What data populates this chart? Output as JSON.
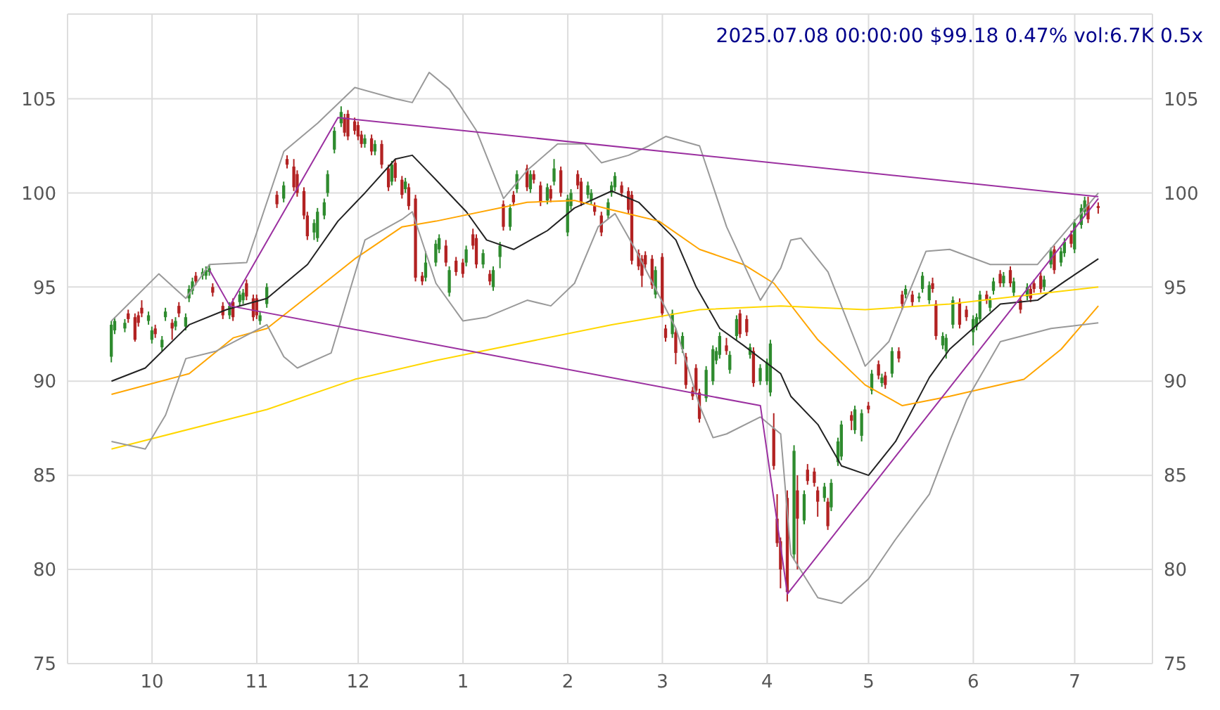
{
  "chart_data": {
    "type": "candlestick",
    "title": "2025.07.08 00:00:00 $99.18 0.47% vol:6.7K 0.5x",
    "x": [
      "2024-09-19",
      "2024-09-20",
      "2024-09-23",
      "2024-09-24",
      "2024-09-26",
      "2024-09-27",
      "2024-09-28",
      "2024-09-30",
      "2024-10-01",
      "2024-10-02",
      "2024-10-04",
      "2024-10-05",
      "2024-10-07",
      "2024-10-08",
      "2024-10-09",
      "2024-10-11",
      "2024-10-12",
      "2024-10-13",
      "2024-10-14",
      "2024-10-16",
      "2024-10-17",
      "2024-10-18",
      "2024-10-19",
      "2024-10-22",
      "2024-10-24",
      "2024-10-25",
      "2024-10-27",
      "2024-10-28",
      "2024-10-29",
      "2024-10-31",
      "2024-11-01",
      "2024-11-02",
      "2024-11-04",
      "2024-11-07",
      "2024-11-09",
      "2024-11-10",
      "2024-11-12",
      "2024-11-13",
      "2024-11-15",
      "2024-11-16",
      "2024-11-18",
      "2024-11-19",
      "2024-11-21",
      "2024-11-22",
      "2024-11-24",
      "2024-11-26",
      "2024-11-27",
      "2024-11-28",
      "2024-11-30",
      "2024-12-01",
      "2024-12-02",
      "2024-12-03",
      "2024-12-05",
      "2024-12-06",
      "2024-12-08",
      "2024-12-10",
      "2024-12-11",
      "2024-12-12",
      "2024-12-14",
      "2024-12-15",
      "2024-12-16",
      "2024-12-18",
      "2024-12-20",
      "2024-12-21",
      "2024-12-24",
      "2024-12-25",
      "2024-12-27",
      "2024-12-28",
      "2024-12-30",
      "2025-01-01",
      "2025-01-02",
      "2025-01-04",
      "2025-01-05",
      "2025-01-07",
      "2025-01-09",
      "2025-01-10",
      "2025-01-12",
      "2025-01-13",
      "2025-01-15",
      "2025-01-16",
      "2025-01-17",
      "2025-01-20",
      "2025-01-21",
      "2025-01-22",
      "2025-01-24",
      "2025-01-26",
      "2025-01-27",
      "2025-01-28",
      "2025-01-30",
      "2025-02-01",
      "2025-02-02",
      "2025-02-04",
      "2025-02-05",
      "2025-02-07",
      "2025-02-08",
      "2025-02-09",
      "2025-02-11",
      "2025-02-13",
      "2025-02-14",
      "2025-02-15",
      "2025-02-17",
      "2025-02-19",
      "2025-02-20",
      "2025-02-22",
      "2025-02-23",
      "2025-02-24",
      "2025-02-26",
      "2025-02-27",
      "2025-03-01",
      "2025-03-02",
      "2025-03-04",
      "2025-03-05",
      "2025-03-07",
      "2025-03-08",
      "2025-03-10",
      "2025-03-11",
      "2025-03-12",
      "2025-03-14",
      "2025-03-16",
      "2025-03-17",
      "2025-03-18",
      "2025-03-20",
      "2025-03-21",
      "2025-03-23",
      "2025-03-24",
      "2025-03-26",
      "2025-03-27",
      "2025-03-28",
      "2025-03-30",
      "2025-04-01",
      "2025-04-02",
      "2025-04-03",
      "2025-04-04",
      "2025-04-05",
      "2025-04-07",
      "2025-04-09",
      "2025-04-10",
      "2025-04-12",
      "2025-04-13",
      "2025-04-15",
      "2025-04-16",
      "2025-04-18",
      "2025-04-19",
      "2025-04-20",
      "2025-04-22",
      "2025-04-23",
      "2025-04-26",
      "2025-04-27",
      "2025-04-29",
      "2025-05-01",
      "2025-05-02",
      "2025-05-04",
      "2025-05-05",
      "2025-05-06",
      "2025-05-08",
      "2025-05-10",
      "2025-05-11",
      "2025-05-12",
      "2025-05-14",
      "2025-05-16",
      "2025-05-17",
      "2025-05-19",
      "2025-05-20",
      "2025-05-21",
      "2025-05-23",
      "2025-05-24",
      "2025-05-26",
      "2025-05-28",
      "2025-05-30",
      "2025-06-01",
      "2025-06-02",
      "2025-06-03",
      "2025-06-05",
      "2025-06-06",
      "2025-06-07",
      "2025-06-09",
      "2025-06-10",
      "2025-06-12",
      "2025-06-13",
      "2025-06-15",
      "2025-06-17",
      "2025-06-18",
      "2025-06-19",
      "2025-06-21",
      "2025-06-22",
      "2025-06-24",
      "2025-06-25",
      "2025-06-27",
      "2025-06-28",
      "2025-06-30",
      "2025-07-01",
      "2025-07-03",
      "2025-07-04",
      "2025-07-05",
      "2025-07-08"
    ],
    "ohlc": [
      [
        91.3,
        93.2,
        91.0,
        93.0
      ],
      [
        92.7,
        93.4,
        92.5,
        93.2
      ],
      [
        92.8,
        93.3,
        92.6,
        93.1
      ],
      [
        93.6,
        93.8,
        93.1,
        93.3
      ],
      [
        93.4,
        93.6,
        92.1,
        92.2
      ],
      [
        93.5,
        93.7,
        92.9,
        93.1
      ],
      [
        93.9,
        94.3,
        93.4,
        93.6
      ],
      [
        93.2,
        93.7,
        93.0,
        93.5
      ],
      [
        92.2,
        92.9,
        92.0,
        92.7
      ],
      [
        92.8,
        93.0,
        92.3,
        92.5
      ],
      [
        91.8,
        92.4,
        91.6,
        92.2
      ],
      [
        93.4,
        93.9,
        93.2,
        93.7
      ],
      [
        93.1,
        93.3,
        92.2,
        92.8
      ],
      [
        92.9,
        93.4,
        92.7,
        93.2
      ],
      [
        94.0,
        94.2,
        93.4,
        93.6
      ],
      [
        92.9,
        93.6,
        92.7,
        93.4
      ],
      [
        94.4,
        95.1,
        94.2,
        94.9
      ],
      [
        94.8,
        95.5,
        94.6,
        95.3
      ],
      [
        95.6,
        95.8,
        95.1,
        95.3
      ],
      [
        95.6,
        96.0,
        95.4,
        95.8
      ],
      [
        95.6,
        96.1,
        95.4,
        95.9
      ],
      [
        95.8,
        96.2,
        95.6,
        96.0
      ],
      [
        95.0,
        95.2,
        94.5,
        94.7
      ],
      [
        94.0,
        94.2,
        93.3,
        93.5
      ],
      [
        93.5,
        94.2,
        93.3,
        94.0
      ],
      [
        94.2,
        94.4,
        93.2,
        93.4
      ],
      [
        94.2,
        94.8,
        94.0,
        94.6
      ],
      [
        94.3,
        94.9,
        94.1,
        94.7
      ],
      [
        95.2,
        95.4,
        94.3,
        94.5
      ],
      [
        94.4,
        94.6,
        93.2,
        93.4
      ],
      [
        94.4,
        94.6,
        93.3,
        93.5
      ],
      [
        93.2,
        93.7,
        93.0,
        93.5
      ],
      [
        94.1,
        95.2,
        93.9,
        95.0
      ],
      [
        99.9,
        100.1,
        99.2,
        99.4
      ],
      [
        99.7,
        100.6,
        99.5,
        100.4
      ],
      [
        101.8,
        102.0,
        101.3,
        101.5
      ],
      [
        101.4,
        101.8,
        100.1,
        100.3
      ],
      [
        101.0,
        101.2,
        99.8,
        100.0
      ],
      [
        100.1,
        100.3,
        98.6,
        98.8
      ],
      [
        98.8,
        99.0,
        97.5,
        97.7
      ],
      [
        97.9,
        98.6,
        97.5,
        98.4
      ],
      [
        97.6,
        99.2,
        97.4,
        99.0
      ],
      [
        98.8,
        99.7,
        98.6,
        99.5
      ],
      [
        100.0,
        101.2,
        99.8,
        101.0
      ],
      [
        102.3,
        103.5,
        102.1,
        103.3
      ],
      [
        103.7,
        104.6,
        103.5,
        104.3
      ],
      [
        104.0,
        104.2,
        103.0,
        103.2
      ],
      [
        104.2,
        104.4,
        102.8,
        103.0
      ],
      [
        103.8,
        104.0,
        103.1,
        103.3
      ],
      [
        103.6,
        103.8,
        102.8,
        103.0
      ],
      [
        103.1,
        103.3,
        102.4,
        102.6
      ],
      [
        102.6,
        103.1,
        102.4,
        102.9
      ],
      [
        102.9,
        103.1,
        102.0,
        102.2
      ],
      [
        102.2,
        102.8,
        102.0,
        102.6
      ],
      [
        102.6,
        102.8,
        101.3,
        101.5
      ],
      [
        101.3,
        101.5,
        100.1,
        100.3
      ],
      [
        100.6,
        101.7,
        100.4,
        101.5
      ],
      [
        101.6,
        101.8,
        100.6,
        100.8
      ],
      [
        100.7,
        100.9,
        99.7,
        99.9
      ],
      [
        100.2,
        100.8,
        100.0,
        100.6
      ],
      [
        100.3,
        100.5,
        99.1,
        99.3
      ],
      [
        99.7,
        99.9,
        95.3,
        95.5
      ],
      [
        95.6,
        95.8,
        95.1,
        95.3
      ],
      [
        95.5,
        96.9,
        95.3,
        96.3
      ],
      [
        96.3,
        97.5,
        96.1,
        97.3
      ],
      [
        97.0,
        97.8,
        96.8,
        97.6
      ],
      [
        97.2,
        97.5,
        96.1,
        96.3
      ],
      [
        94.7,
        96.1,
        94.5,
        95.9
      ],
      [
        96.4,
        96.6,
        95.6,
        95.8
      ],
      [
        96.3,
        96.5,
        95.5,
        95.7
      ],
      [
        96.3,
        97.2,
        96.1,
        97.0
      ],
      [
        97.8,
        98.1,
        97.0,
        97.2
      ],
      [
        97.6,
        97.8,
        96.0,
        96.2
      ],
      [
        96.2,
        97.0,
        96.0,
        96.8
      ],
      [
        95.7,
        95.9,
        95.1,
        95.3
      ],
      [
        95.0,
        96.1,
        94.8,
        95.9
      ],
      [
        96.6,
        97.4,
        96.0,
        97.2
      ],
      [
        99.4,
        99.6,
        98.0,
        98.2
      ],
      [
        98.2,
        99.4,
        98.0,
        99.2
      ],
      [
        99.9,
        100.1,
        99.3,
        99.5
      ],
      [
        100.2,
        101.2,
        100.0,
        101.0
      ],
      [
        101.3,
        101.5,
        100.1,
        100.3
      ],
      [
        100.2,
        101.2,
        100.0,
        101.0
      ],
      [
        101.0,
        101.2,
        100.5,
        100.7
      ],
      [
        100.4,
        100.6,
        99.3,
        99.5
      ],
      [
        99.6,
        100.5,
        99.4,
        100.3
      ],
      [
        100.2,
        100.4,
        99.5,
        99.7
      ],
      [
        100.6,
        101.8,
        100.4,
        101.3
      ],
      [
        101.2,
        101.4,
        99.8,
        100.0
      ],
      [
        97.9,
        99.9,
        97.7,
        99.7
      ],
      [
        99.3,
        100.2,
        99.1,
        100.0
      ],
      [
        101.0,
        101.2,
        100.2,
        100.4
      ],
      [
        100.6,
        100.8,
        99.3,
        99.5
      ],
      [
        99.9,
        100.6,
        99.7,
        100.4
      ],
      [
        99.6,
        100.2,
        99.4,
        100.0
      ],
      [
        99.3,
        99.5,
        98.8,
        99.0
      ],
      [
        98.8,
        99.0,
        97.7,
        97.9
      ],
      [
        98.8,
        99.7,
        98.6,
        99.5
      ],
      [
        100.0,
        100.6,
        99.8,
        100.4
      ],
      [
        100.3,
        101.1,
        100.1,
        100.9
      ],
      [
        100.4,
        100.6,
        99.8,
        100.0
      ],
      [
        100.1,
        100.3,
        98.9,
        99.1
      ],
      [
        99.9,
        100.1,
        96.2,
        96.4
      ],
      [
        96.8,
        97.0,
        95.9,
        96.1
      ],
      [
        96.5,
        96.7,
        95.0,
        95.6
      ],
      [
        96.7,
        96.9,
        96.0,
        96.2
      ],
      [
        96.5,
        96.7,
        94.9,
        95.1
      ],
      [
        94.6,
        96.1,
        94.4,
        95.9
      ],
      [
        96.6,
        96.8,
        93.4,
        93.6
      ],
      [
        92.8,
        93.0,
        92.1,
        92.3
      ],
      [
        92.5,
        93.8,
        92.3,
        93.6
      ],
      [
        92.6,
        92.8,
        90.9,
        91.5
      ],
      [
        91.7,
        92.6,
        91.5,
        92.4
      ],
      [
        91.3,
        91.5,
        89.6,
        89.8
      ],
      [
        89.5,
        89.7,
        89.0,
        89.2
      ],
      [
        90.7,
        90.9,
        89.3,
        89.5
      ],
      [
        89.4,
        89.6,
        87.8,
        88.0
      ],
      [
        89.1,
        90.8,
        88.9,
        90.6
      ],
      [
        90.0,
        91.9,
        89.8,
        91.7
      ],
      [
        91.1,
        91.8,
        90.9,
        91.6
      ],
      [
        91.4,
        92.6,
        91.2,
        92.4
      ],
      [
        91.9,
        92.3,
        91.4,
        91.6
      ],
      [
        90.6,
        91.6,
        90.4,
        91.4
      ],
      [
        92.4,
        93.5,
        92.2,
        93.3
      ],
      [
        93.6,
        93.8,
        92.3,
        92.5
      ],
      [
        93.3,
        93.5,
        92.4,
        92.6
      ],
      [
        91.4,
        92.0,
        91.2,
        91.8
      ],
      [
        91.6,
        91.8,
        89.7,
        89.9
      ],
      [
        90.0,
        90.9,
        89.8,
        90.7
      ],
      [
        90.0,
        91.2,
        89.8,
        91.0
      ],
      [
        89.4,
        92.2,
        89.2,
        92.0
      ],
      [
        87.5,
        88.3,
        85.3,
        85.5
      ],
      [
        82.7,
        84.0,
        81.2,
        81.4
      ],
      [
        81.5,
        81.7,
        79.0,
        80.0
      ],
      [
        83.8,
        84.2,
        78.3,
        78.8
      ],
      [
        80.8,
        86.6,
        80.5,
        86.3
      ],
      [
        84.2,
        85.0,
        80.0,
        82.7
      ],
      [
        82.6,
        84.2,
        82.4,
        84.0
      ],
      [
        85.3,
        85.6,
        84.5,
        84.7
      ],
      [
        85.2,
        85.4,
        84.4,
        84.6
      ],
      [
        84.2,
        84.4,
        82.8,
        83.6
      ],
      [
        83.8,
        84.6,
        83.6,
        84.4
      ],
      [
        83.6,
        83.8,
        82.1,
        82.3
      ],
      [
        83.3,
        84.8,
        83.1,
        84.6
      ],
      [
        85.7,
        87.0,
        85.5,
        86.8
      ],
      [
        86.0,
        87.9,
        85.8,
        87.7
      ],
      [
        88.2,
        88.4,
        87.4,
        87.9
      ],
      [
        87.4,
        88.7,
        87.2,
        88.5
      ],
      [
        87.1,
        88.5,
        86.8,
        88.3
      ],
      [
        88.7,
        88.9,
        88.3,
        88.5
      ],
      [
        89.5,
        90.6,
        89.3,
        90.4
      ],
      [
        90.9,
        91.1,
        90.1,
        90.3
      ],
      [
        89.9,
        90.4,
        89.7,
        90.2
      ],
      [
        90.3,
        90.5,
        89.6,
        89.8
      ],
      [
        90.4,
        91.8,
        90.2,
        91.6
      ],
      [
        91.6,
        91.8,
        91.0,
        91.2
      ],
      [
        94.6,
        94.8,
        93.8,
        94.1
      ],
      [
        94.6,
        95.1,
        94.4,
        94.9
      ],
      [
        94.6,
        94.8,
        94.0,
        94.2
      ],
      [
        94.4,
        94.7,
        94.2,
        94.5
      ],
      [
        94.9,
        95.8,
        94.7,
        95.6
      ],
      [
        94.3,
        95.3,
        94.1,
        95.1
      ],
      [
        95.2,
        95.5,
        94.7,
        94.9
      ],
      [
        94.1,
        94.3,
        92.2,
        92.4
      ],
      [
        91.9,
        92.6,
        91.7,
        92.4
      ],
      [
        91.6,
        92.5,
        91.2,
        92.3
      ],
      [
        93.0,
        94.5,
        92.8,
        94.3
      ],
      [
        94.2,
        94.4,
        92.8,
        93.0
      ],
      [
        93.8,
        94.0,
        93.2,
        93.4
      ],
      [
        92.6,
        93.5,
        91.9,
        93.3
      ],
      [
        92.9,
        93.6,
        92.7,
        93.4
      ],
      [
        93.3,
        94.8,
        93.1,
        94.6
      ],
      [
        94.6,
        94.8,
        94.1,
        94.3
      ],
      [
        93.9,
        94.5,
        93.7,
        94.3
      ],
      [
        94.8,
        95.5,
        94.6,
        95.3
      ],
      [
        95.7,
        95.9,
        95.0,
        95.2
      ],
      [
        95.2,
        95.8,
        95.0,
        95.6
      ],
      [
        95.9,
        96.1,
        95.0,
        95.2
      ],
      [
        94.7,
        95.5,
        94.5,
        95.3
      ],
      [
        94.3,
        94.5,
        93.6,
        93.8
      ],
      [
        94.5,
        95.2,
        94.3,
        95.0
      ],
      [
        94.9,
        95.1,
        94.2,
        94.4
      ],
      [
        95.2,
        95.4,
        94.7,
        94.9
      ],
      [
        95.6,
        95.8,
        94.7,
        94.9
      ],
      [
        95.0,
        95.6,
        94.8,
        95.4
      ],
      [
        96.2,
        97.1,
        96.0,
        96.9
      ],
      [
        97.0,
        97.2,
        95.7,
        95.9
      ],
      [
        96.3,
        97.1,
        96.1,
        96.9
      ],
      [
        96.8,
        97.6,
        96.6,
        97.4
      ],
      [
        97.8,
        98.0,
        97.1,
        97.3
      ],
      [
        97.0,
        98.6,
        96.8,
        98.4
      ],
      [
        98.3,
        99.4,
        98.1,
        99.2
      ],
      [
        99.0,
        99.8,
        98.8,
        99.6
      ],
      [
        99.4,
        99.8,
        98.4,
        98.6
      ],
      [
        99.3,
        99.5,
        98.9,
        99.2
      ]
    ],
    "colors": [
      "#2e8b2e",
      "#2e8b2e",
      "#2e8b2e",
      "#b22222",
      "#b22222",
      "#b22222",
      "#b22222",
      "#2e8b2e",
      "#2e8b2e",
      "#b22222",
      "#2e8b2e",
      "#2e8b2e",
      "#b22222",
      "#2e8b2e",
      "#b22222",
      "#2e8b2e",
      "#2e8b2e",
      "#2e8b2e",
      "#b22222",
      "#2e8b2e",
      "#2e8b2e",
      "#2e8b2e",
      "#b22222",
      "#b22222",
      "#2e8b2e",
      "#b22222",
      "#2e8b2e",
      "#2e8b2e",
      "#b22222",
      "#b22222",
      "#b22222",
      "#2e8b2e",
      "#2e8b2e",
      "#b22222",
      "#2e8b2e",
      "#b22222",
      "#b22222",
      "#b22222",
      "#b22222",
      "#b22222",
      "#2e8b2e",
      "#2e8b2e",
      "#2e8b2e",
      "#2e8b2e",
      "#2e8b2e",
      "#2e8b2e",
      "#b22222",
      "#b22222",
      "#b22222",
      "#b22222",
      "#b22222",
      "#2e8b2e",
      "#b22222",
      "#2e8b2e",
      "#b22222",
      "#b22222",
      "#2e8b2e",
      "#b22222",
      "#b22222",
      "#2e8b2e",
      "#b22222",
      "#b22222",
      "#b22222",
      "#2e8b2e",
      "#2e8b2e",
      "#2e8b2e",
      "#b22222",
      "#2e8b2e",
      "#b22222",
      "#b22222",
      "#2e8b2e",
      "#b22222",
      "#b22222",
      "#2e8b2e",
      "#b22222",
      "#2e8b2e",
      "#2e8b2e",
      "#b22222",
      "#2e8b2e",
      "#b22222",
      "#2e8b2e",
      "#b22222",
      "#2e8b2e",
      "#b22222",
      "#b22222",
      "#2e8b2e",
      "#b22222",
      "#2e8b2e",
      "#b22222",
      "#2e8b2e",
      "#2e8b2e",
      "#b22222",
      "#b22222",
      "#2e8b2e",
      "#2e8b2e",
      "#b22222",
      "#b22222",
      "#2e8b2e",
      "#2e8b2e",
      "#2e8b2e",
      "#b22222",
      "#b22222",
      "#b22222",
      "#b22222",
      "#b22222",
      "#b22222",
      "#b22222",
      "#2e8b2e",
      "#b22222",
      "#b22222",
      "#2e8b2e",
      "#b22222",
      "#2e8b2e",
      "#b22222",
      "#b22222",
      "#b22222",
      "#b22222",
      "#2e8b2e",
      "#2e8b2e",
      "#2e8b2e",
      "#2e8b2e",
      "#b22222",
      "#2e8b2e",
      "#2e8b2e",
      "#b22222",
      "#b22222",
      "#2e8b2e",
      "#b22222",
      "#2e8b2e",
      "#2e8b2e",
      "#2e8b2e",
      "#b22222",
      "#b22222",
      "#b22222",
      "#b22222",
      "#2e8b2e",
      "#b22222",
      "#2e8b2e",
      "#b22222",
      "#b22222",
      "#b22222",
      "#2e8b2e",
      "#b22222",
      "#2e8b2e",
      "#2e8b2e",
      "#2e8b2e",
      "#b22222",
      "#2e8b2e",
      "#2e8b2e",
      "#b22222",
      "#2e8b2e",
      "#b22222",
      "#2e8b2e",
      "#b22222",
      "#2e8b2e",
      "#b22222",
      "#b22222",
      "#2e8b2e",
      "#b22222",
      "#2e8b2e",
      "#2e8b2e",
      "#2e8b2e",
      "#b22222",
      "#b22222",
      "#2e8b2e",
      "#2e8b2e",
      "#2e8b2e",
      "#b22222",
      "#b22222",
      "#2e8b2e",
      "#2e8b2e",
      "#2e8b2e",
      "#b22222",
      "#2e8b2e",
      "#2e8b2e",
      "#b22222",
      "#2e8b2e",
      "#b22222",
      "#2e8b2e",
      "#b22222",
      "#2e8b2e",
      "#b22222",
      "#b22222",
      "#b22222",
      "#2e8b2e",
      "#2e8b2e",
      "#b22222",
      "#2e8b2e",
      "#2e8b2e",
      "#b22222",
      "#2e8b2e",
      "#2e8b2e",
      "#2e8b2e",
      "#b22222",
      "#b22222"
    ],
    "series": [
      {
        "type": "line",
        "color": "#222222",
        "x": [
          "2024-09-19",
          "2024-09-29",
          "2024-10-12",
          "2024-10-23",
          "2024-11-04",
          "2024-11-16",
          "2024-11-25",
          "2024-12-03",
          "2024-12-12",
          "2024-12-17",
          "2024-12-24",
          "2025-01-02",
          "2025-01-08",
          "2025-01-16",
          "2025-01-26",
          "2025-02-03",
          "2025-02-14",
          "2025-02-22",
          "2025-03-05",
          "2025-03-11",
          "2025-03-18",
          "2025-03-25",
          "2025-04-05",
          "2025-04-08",
          "2025-04-16",
          "2025-04-23",
          "2025-05-01",
          "2025-05-09",
          "2025-05-19",
          "2025-05-25",
          "2025-06-09",
          "2025-06-20",
          "2025-06-28",
          "2025-07-08"
        ],
        "values": [
          90,
          90.7,
          93,
          93.8,
          94.4,
          96.2,
          98.5,
          100,
          101.8,
          102,
          100.7,
          99,
          97.5,
          97,
          98,
          99.2,
          100.1,
          99.5,
          97.5,
          95,
          92.8,
          91.9,
          90.4,
          89.2,
          87.7,
          85.5,
          85,
          86.8,
          90.2,
          91.7,
          94.1,
          94.3,
          95.3,
          96.5
        ]
      },
      {
        "type": "line",
        "color": "#ffa500",
        "x": [
          "2024-09-19",
          "2024-10-12",
          "2024-10-25",
          "2024-11-04",
          "2024-11-16",
          "2024-11-30",
          "2024-12-14",
          "2024-12-24",
          "2025-01-20",
          "2025-02-03",
          "2025-02-14",
          "2025-02-28",
          "2025-03-12",
          "2025-03-25",
          "2025-04-03",
          "2025-04-16",
          "2025-04-30",
          "2025-05-11",
          "2025-05-25",
          "2025-06-16",
          "2025-06-27",
          "2025-07-08"
        ],
        "values": [
          89.3,
          90.4,
          92.3,
          92.8,
          94.5,
          96.5,
          98.2,
          98.5,
          99.5,
          99.6,
          99.1,
          98.5,
          97,
          96.2,
          95.2,
          92.2,
          89.8,
          88.7,
          89.2,
          90.1,
          91.7,
          94
        ]
      },
      {
        "type": "line",
        "color": "#ffd700",
        "x": [
          "2024-09-19",
          "2024-11-04",
          "2024-11-30",
          "2024-12-24",
          "2025-02-14",
          "2025-03-12",
          "2025-04-05",
          "2025-04-30",
          "2025-05-25",
          "2025-07-08"
        ],
        "values": [
          86.4,
          88.5,
          90.1,
          91.1,
          93,
          93.8,
          94,
          93.8,
          94.1,
          95
        ]
      },
      {
        "type": "line",
        "color": "#999999",
        "x": [
          "2024-09-19",
          "2024-10-03",
          "2024-10-11",
          "2024-10-18",
          "2024-10-29",
          "2024-11-09",
          "2024-11-19",
          "2024-11-30",
          "2024-12-12",
          "2024-12-17",
          "2024-12-22",
          "2024-12-28",
          "2025-01-05",
          "2025-01-13",
          "2025-01-20",
          "2025-01-29",
          "2025-02-06",
          "2025-02-11",
          "2025-02-19",
          "2025-02-25",
          "2025-03-02",
          "2025-03-12",
          "2025-03-20",
          "2025-03-30",
          "2025-04-05",
          "2025-04-08",
          "2025-04-11",
          "2025-04-19",
          "2025-04-30",
          "2025-05-07",
          "2025-05-18",
          "2025-05-25",
          "2025-06-06",
          "2025-06-20",
          "2025-07-08"
        ],
        "values": [
          93.2,
          95.7,
          94.4,
          96.2,
          96.3,
          102.2,
          103.7,
          105.6,
          105,
          104.8,
          106.4,
          105.5,
          103.3,
          99.7,
          101.2,
          102.6,
          102.6,
          101.6,
          102,
          102.5,
          103,
          102.5,
          98.2,
          94.3,
          96,
          97.5,
          97.6,
          95.8,
          90.8,
          92.1,
          96.9,
          97,
          96.2,
          96.2,
          100
        ]
      },
      {
        "type": "line",
        "color": "#999999",
        "x": [
          "2024-09-19",
          "2024-09-29",
          "2024-10-05",
          "2024-10-11",
          "2024-10-20",
          "2024-11-04",
          "2024-11-09",
          "2024-11-13",
          "2024-11-23",
          "2024-12-03",
          "2024-12-14",
          "2024-12-17",
          "2024-12-24",
          "2025-01-01",
          "2025-01-08",
          "2025-01-20",
          "2025-01-27",
          "2025-02-03",
          "2025-02-10",
          "2025-02-15",
          "2025-02-21",
          "2025-03-05",
          "2025-03-12",
          "2025-03-16",
          "2025-03-20",
          "2025-03-30",
          "2025-04-05",
          "2025-04-08",
          "2025-04-16",
          "2025-04-23",
          "2025-05-01",
          "2025-05-09",
          "2025-05-19",
          "2025-05-25",
          "2025-05-30",
          "2025-06-09",
          "2025-06-24",
          "2025-07-08"
        ],
        "values": [
          86.8,
          86.4,
          88.2,
          91.2,
          91.6,
          93,
          91.3,
          90.7,
          91.5,
          97.5,
          98.6,
          99,
          95.2,
          93.2,
          93.4,
          94.3,
          94,
          95.2,
          98.2,
          98.9,
          97,
          92.8,
          88.7,
          87,
          87.2,
          88.1,
          87.2,
          80.8,
          78.5,
          78.2,
          79.5,
          81.6,
          84,
          86.8,
          89,
          92.1,
          92.8,
          93.1
        ]
      },
      {
        "type": "line",
        "color": "#9b30a0",
        "x": [
          "2024-10-18",
          "2024-10-24",
          "2024-11-25",
          "2025-07-08"
        ],
        "values": [
          95.9,
          94,
          104,
          99.8
        ]
      },
      {
        "type": "line",
        "color": "#9b30a0",
        "x": [
          "2024-10-24",
          "2025-03-30",
          "2025-04-07",
          "2025-07-08"
        ],
        "values": [
          94,
          88.7,
          78.7,
          99.7
        ]
      }
    ],
    "xlim": [
      "2024-09-06",
      "2025-07-24"
    ],
    "xticks": [
      {
        "value": "2024-10-01",
        "label": "10"
      },
      {
        "value": "2024-11-01",
        "label": "11"
      },
      {
        "value": "2024-12-01",
        "label": "12"
      },
      {
        "value": "2025-01-01",
        "label": "1"
      },
      {
        "value": "2025-02-01",
        "label": "2"
      },
      {
        "value": "2025-03-01",
        "label": "3"
      },
      {
        "value": "2025-04-01",
        "label": "4"
      },
      {
        "value": "2025-05-01",
        "label": "5"
      },
      {
        "value": "2025-06-01",
        "label": "6"
      },
      {
        "value": "2025-07-01",
        "label": "7"
      }
    ],
    "ylim": [
      75,
      109.5
    ],
    "yticks": [
      75,
      80,
      85,
      90,
      95,
      100,
      105
    ],
    "y2lim": [
      75,
      109.5
    ],
    "y2ticks": [
      75,
      80,
      85,
      90,
      95,
      100,
      105
    ],
    "grid": true
  }
}
